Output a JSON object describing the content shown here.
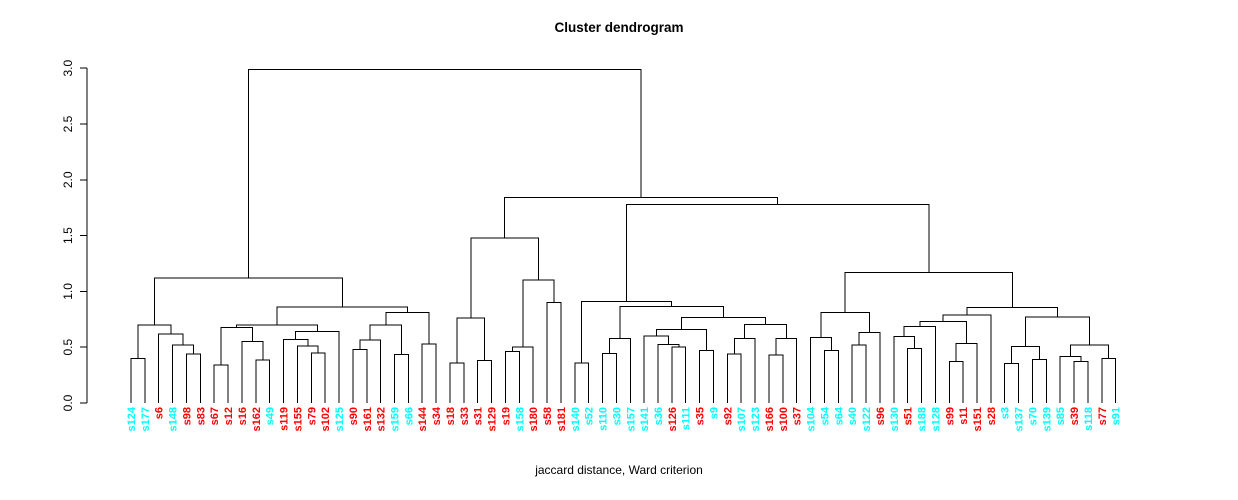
{
  "title": "Cluster dendrogram",
  "caption": "jaccard distance, Ward criterion",
  "chart_data": {
    "type": "dendrogram",
    "title": "Cluster dendrogram",
    "xlabel": "jaccard distance, Ward criterion",
    "ylabel": "",
    "ylim": [
      0,
      3
    ],
    "y_ticks": [
      "0.0",
      "0.5",
      "1.0",
      "1.5",
      "2.0",
      "2.5",
      "3.0"
    ],
    "grid": false,
    "legend": null,
    "colors": {
      "c": "#00FFFF",
      "r": "#FF0000",
      "line": "#000000"
    },
    "leaves": [
      {
        "label": "s124",
        "color": "c"
      },
      {
        "label": "s177",
        "color": "c"
      },
      {
        "label": "s6",
        "color": "r"
      },
      {
        "label": "s148",
        "color": "c"
      },
      {
        "label": "s98",
        "color": "r"
      },
      {
        "label": "s83",
        "color": "r"
      },
      {
        "label": "s67",
        "color": "r"
      },
      {
        "label": "s12",
        "color": "r"
      },
      {
        "label": "s16",
        "color": "r"
      },
      {
        "label": "s162",
        "color": "r"
      },
      {
        "label": "s49",
        "color": "c"
      },
      {
        "label": "s119",
        "color": "r"
      },
      {
        "label": "s155",
        "color": "r"
      },
      {
        "label": "s79",
        "color": "r"
      },
      {
        "label": "s102",
        "color": "r"
      },
      {
        "label": "s125",
        "color": "c"
      },
      {
        "label": "s90",
        "color": "r"
      },
      {
        "label": "s161",
        "color": "r"
      },
      {
        "label": "s132",
        "color": "r"
      },
      {
        "label": "s159",
        "color": "c"
      },
      {
        "label": "s66",
        "color": "c"
      },
      {
        "label": "s144",
        "color": "r"
      },
      {
        "label": "s34",
        "color": "r"
      },
      {
        "label": "s18",
        "color": "r"
      },
      {
        "label": "s33",
        "color": "r"
      },
      {
        "label": "s31",
        "color": "r"
      },
      {
        "label": "s129",
        "color": "r"
      },
      {
        "label": "s19",
        "color": "r"
      },
      {
        "label": "s158",
        "color": "c"
      },
      {
        "label": "s180",
        "color": "r"
      },
      {
        "label": "s58",
        "color": "r"
      },
      {
        "label": "s181",
        "color": "r"
      },
      {
        "label": "s140",
        "color": "c"
      },
      {
        "label": "s52",
        "color": "c"
      },
      {
        "label": "s110",
        "color": "c"
      },
      {
        "label": "s30",
        "color": "c"
      },
      {
        "label": "s157",
        "color": "c"
      },
      {
        "label": "s141",
        "color": "c"
      },
      {
        "label": "s36",
        "color": "c"
      },
      {
        "label": "s126",
        "color": "r"
      },
      {
        "label": "s111",
        "color": "c"
      },
      {
        "label": "s35",
        "color": "r"
      },
      {
        "label": "s9",
        "color": "c"
      },
      {
        "label": "s92",
        "color": "r"
      },
      {
        "label": "s107",
        "color": "c"
      },
      {
        "label": "s123",
        "color": "c"
      },
      {
        "label": "s166",
        "color": "r"
      },
      {
        "label": "s100",
        "color": "r"
      },
      {
        "label": "s37",
        "color": "r"
      },
      {
        "label": "s104",
        "color": "c"
      },
      {
        "label": "s54",
        "color": "c"
      },
      {
        "label": "s64",
        "color": "c"
      },
      {
        "label": "s40",
        "color": "c"
      },
      {
        "label": "s122",
        "color": "c"
      },
      {
        "label": "s96",
        "color": "r"
      },
      {
        "label": "s130",
        "color": "c"
      },
      {
        "label": "s51",
        "color": "r"
      },
      {
        "label": "s188",
        "color": "c"
      },
      {
        "label": "s128",
        "color": "c"
      },
      {
        "label": "s99",
        "color": "r"
      },
      {
        "label": "s11",
        "color": "r"
      },
      {
        "label": "s151",
        "color": "r"
      },
      {
        "label": "s28",
        "color": "r"
      },
      {
        "label": "s3",
        "color": "c"
      },
      {
        "label": "s137",
        "color": "c"
      },
      {
        "label": "s70",
        "color": "c"
      },
      {
        "label": "s139",
        "color": "c"
      },
      {
        "label": "s85",
        "color": "c"
      },
      {
        "label": "s39",
        "color": "r"
      },
      {
        "label": "s118",
        "color": "c"
      },
      {
        "label": "s77",
        "color": "r"
      },
      {
        "label": "s91",
        "color": "c"
      }
    ],
    "tree": [
      2.99,
      [
        1.12,
        [
          0.7,
          [
            0.4,
            "s124",
            "s177"
          ],
          [
            0.62,
            "s6",
            [
              0.52,
              "s148",
              [
                0.44,
                "s98",
                "s83"
              ]
            ]
          ]
        ],
        [
          0.86,
          [
            0.7,
            [
              0.675,
              [
                0.34,
                "s67",
                "s12"
              ],
              [
                0.55,
                "s16",
                [
                  0.385,
                  "s162",
                  "s49"
                ]
              ]
            ],
            [
              0.64,
              [
                0.57,
                "s119",
                [
                  0.51,
                  "s155",
                  [
                    0.45,
                    "s79",
                    "s102"
                  ]
                ]
              ],
              "s125"
            ]
          ],
          [
            0.81,
            [
              0.7,
              [
                0.565,
                [
                  0.48,
                  "s90",
                  "s161"
                ],
                "s132"
              ],
              [
                0.435,
                "s159",
                "s66"
              ]
            ],
            [
              0.53,
              "s144",
              "s34"
            ]
          ]
        ]
      ],
      [
        1.84,
        [
          1.48,
          [
            0.76,
            [
              0.36,
              "s18",
              "s33"
            ],
            [
              0.38,
              "s31",
              "s129"
            ]
          ],
          [
            1.1,
            [
              0.5,
              [
                0.46,
                "s19",
                "s158"
              ],
              "s180"
            ],
            [
              0.9,
              "s58",
              "s181"
            ]
          ]
        ],
        [
          1.78,
          [
            0.91,
            [
              0.36,
              "s140",
              "s52"
            ],
            [
              0.865,
              [
                0.58,
                [
                  0.445,
                  "s110",
                  "s30"
                ],
                "s157"
              ],
              [
                0.765,
                [
                  0.66,
                  [
                    0.6,
                    "s141",
                    [
                      0.525,
                      "s36",
                      [
                        0.5,
                        "s126",
                        "s111"
                      ]
                    ]
                  ],
                  [
                    0.47,
                    "s35",
                    "s9"
                  ]
                ],
                [
                  0.705,
                  [
                    0.58,
                    [
                      0.44,
                      "s92",
                      "s107"
                    ],
                    "s123"
                  ],
                  [
                    0.58,
                    [
                      0.43,
                      "s166",
                      "s100"
                    ],
                    "s37"
                  ]
                ]
              ]
            ]
          ],
          [
            1.17,
            [
              0.81,
              [
                0.585,
                "s104",
                [
                  0.47,
                  "s54",
                  "s64"
                ]
              ],
              [
                0.63,
                [
                  0.52,
                  "s40",
                  "s122"
                ],
                "s96"
              ]
            ],
            [
              0.854,
              [
                0.79,
                [
                  0.73,
                  [
                    0.684,
                    [
                      0.594,
                      "s130",
                      [
                        0.49,
                        "s51",
                        "s188"
                      ]
                    ],
                    "s128"
                  ],
                  [
                    0.535,
                    [
                      0.37,
                      "s99",
                      "s11"
                    ],
                    "s151"
                  ]
                ],
                "s28"
              ],
              [
                0.77,
                [
                  0.505,
                  [
                    0.355,
                    "s3",
                    "s137"
                  ],
                  [
                    0.39,
                    "s70",
                    "s139"
                  ]
                ],
                [
                  0.52,
                  [
                    0.415,
                    "s85",
                    [
                      0.37,
                      "s39",
                      "s118"
                    ]
                  ],
                  [
                    0.4,
                    "s77",
                    "s91"
                  ]
                ]
              ]
            ]
          ]
        ]
      ]
    ]
  }
}
